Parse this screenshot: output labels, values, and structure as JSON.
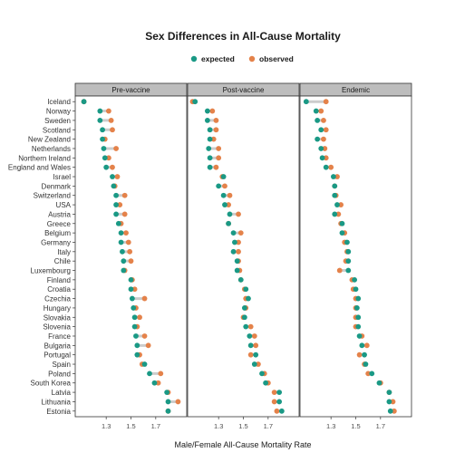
{
  "chart_data": {
    "type": "scatter",
    "subtype": "dumbbell",
    "title": "Sex Differences in All-Cause Mortality",
    "xlabel": "Male/Female All-Cause Mortality Rate",
    "ylabel": "",
    "legend": {
      "placement": "top",
      "entries": [
        {
          "name": "expected",
          "color": "#1a9985"
        },
        {
          "name": "observed",
          "color": "#e4824a"
        }
      ]
    },
    "colors": {
      "expected": "#1a9985",
      "observed": "#e4824a",
      "connector": "#cccccc",
      "strip_fill": "#bdbdbd"
    },
    "xlim": [
      1.05,
      1.95
    ],
    "x_ticks": [
      1.3,
      1.5,
      1.7
    ],
    "x_tick_labels": [
      "1.3",
      "1.5",
      "1.7"
    ],
    "grid": false,
    "countries": [
      "Iceland",
      "Norway",
      "Sweden",
      "Scotland",
      "New Zealand",
      "Netherlands",
      "Northern Ireland",
      "England and Wales",
      "Israel",
      "Denmark",
      "Switzerland",
      "USA",
      "Austria",
      "Greece",
      "Belgium",
      "Germany",
      "Italy",
      "Chile",
      "Luxembourg",
      "Finland",
      "Croatia",
      "Czechia",
      "Hungary",
      "Slovakia",
      "Slovenia",
      "France",
      "Bulgaria",
      "Portugal",
      "Spain",
      "Poland",
      "South Korea",
      "Latvia",
      "Lithuania",
      "Estonia"
    ],
    "panels": [
      {
        "name": "Pre-vaccine",
        "expected": [
          1.12,
          1.25,
          1.25,
          1.27,
          1.27,
          1.28,
          1.29,
          1.3,
          1.35,
          1.36,
          1.38,
          1.38,
          1.38,
          1.4,
          1.42,
          1.42,
          1.43,
          1.44,
          1.44,
          1.5,
          1.5,
          1.51,
          1.52,
          1.53,
          1.53,
          1.54,
          1.55,
          1.55,
          1.61,
          1.65,
          1.69,
          1.79,
          1.8,
          1.8
        ],
        "observed": [
          1.12,
          1.32,
          1.34,
          1.35,
          1.29,
          1.38,
          1.32,
          1.35,
          1.39,
          1.37,
          1.45,
          1.41,
          1.45,
          1.42,
          1.46,
          1.48,
          1.49,
          1.5,
          1.45,
          1.51,
          1.53,
          1.61,
          1.54,
          1.57,
          1.55,
          1.61,
          1.64,
          1.57,
          1.59,
          1.74,
          1.72,
          1.8,
          1.88,
          1.8
        ]
      },
      {
        "name": "Post-vaccine",
        "expected": [
          1.11,
          1.21,
          1.21,
          1.23,
          1.23,
          1.22,
          1.23,
          1.23,
          1.34,
          1.3,
          1.34,
          1.35,
          1.39,
          1.38,
          1.42,
          1.43,
          1.42,
          1.45,
          1.45,
          1.48,
          1.52,
          1.54,
          1.51,
          1.51,
          1.52,
          1.55,
          1.56,
          1.6,
          1.59,
          1.65,
          1.68,
          1.79,
          1.79,
          1.81
        ],
        "observed": [
          1.09,
          1.25,
          1.28,
          1.28,
          1.26,
          1.3,
          1.3,
          1.28,
          1.33,
          1.35,
          1.39,
          1.38,
          1.46,
          1.38,
          1.48,
          1.46,
          1.46,
          1.46,
          1.47,
          1.48,
          1.51,
          1.52,
          1.52,
          1.5,
          1.56,
          1.59,
          1.6,
          1.56,
          1.62,
          1.67,
          1.7,
          1.75,
          1.75,
          1.77
        ]
      },
      {
        "name": "Endemic",
        "expected": [
          1.1,
          1.18,
          1.19,
          1.22,
          1.19,
          1.22,
          1.23,
          1.26,
          1.32,
          1.33,
          1.33,
          1.35,
          1.33,
          1.39,
          1.39,
          1.43,
          1.44,
          1.44,
          1.44,
          1.49,
          1.5,
          1.52,
          1.51,
          1.52,
          1.52,
          1.53,
          1.55,
          1.57,
          1.58,
          1.63,
          1.69,
          1.77,
          1.77,
          1.78
        ],
        "observed": [
          1.26,
          1.22,
          1.24,
          1.26,
          1.24,
          1.25,
          1.26,
          1.3,
          1.35,
          1.33,
          1.34,
          1.38,
          1.36,
          1.38,
          1.41,
          1.41,
          1.43,
          1.42,
          1.37,
          1.47,
          1.48,
          1.5,
          1.5,
          1.5,
          1.5,
          1.55,
          1.59,
          1.53,
          1.57,
          1.6,
          1.7,
          1.77,
          1.8,
          1.81
        ]
      }
    ]
  }
}
